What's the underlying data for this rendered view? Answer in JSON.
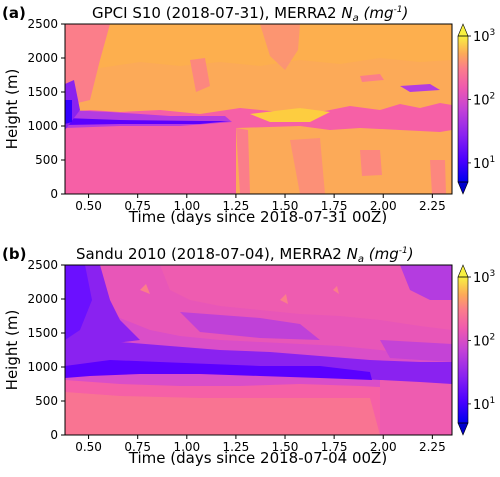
{
  "chart_data": [
    {
      "type": "heatmap",
      "panel": "(a)",
      "title_main": "GPCI S10 (2018-07-31), MERRA2 ",
      "title_var": "N",
      "title_sub": "a",
      "title_unit": "(mg",
      "title_exp": "-1",
      "title_close": ")",
      "xlabel": "Time (days since 2018-07-31 00Z)",
      "ylabel": "Height (m)",
      "xlim": [
        0.38,
        2.35
      ],
      "ylim": [
        0,
        2500
      ],
      "xticks": [
        "0.50",
        "0.75",
        "1.00",
        "1.25",
        "1.50",
        "1.75",
        "2.00",
        "2.25"
      ],
      "yticks": [
        "0",
        "500",
        "1000",
        "1500",
        "2000",
        "2500"
      ],
      "colorbar": {
        "scale": "log",
        "range": [
          5,
          1000
        ],
        "ticks": [
          "10",
          "10",
          "10"
        ],
        "exps": [
          "1",
          "2",
          "3"
        ]
      },
      "grid": false,
      "field_description": "Mostly ~100-300 mg-1 (pink) below ~1000 m; ~300-600 mg-1 (orange) above; thin low (~20-40) layer near 1000-1100 m from 0.38 to ~1.15 days."
    },
    {
      "type": "heatmap",
      "panel": "(b)",
      "title_main": "Sandu 2010 (2018-07-04), MERRA2 ",
      "title_var": "N",
      "title_sub": "a",
      "title_unit": "(mg",
      "title_exp": "-1",
      "title_close": ")",
      "xlabel": "Time (days since 2018-07-04 00Z)",
      "ylabel": "Height (m)",
      "xlim": [
        0.38,
        2.35
      ],
      "ylim": [
        0,
        2500
      ],
      "xticks": [
        "0.50",
        "0.75",
        "1.00",
        "1.25",
        "1.50",
        "1.75",
        "2.00",
        "2.25"
      ],
      "yticks": [
        "0",
        "500",
        "1000",
        "1500",
        "2000",
        "2500"
      ],
      "colorbar": {
        "scale": "log",
        "range": [
          5,
          1000
        ],
        "ticks": [
          "10",
          "10",
          "10"
        ],
        "exps": [
          "1",
          "2",
          "3"
        ]
      },
      "grid": false,
      "field_description": "Mostly ~100-150 mg-1 (pink) below ~650 m; low (~30-60, purple) layer ~700-1000 m; ~60-120 above, purple at upper left."
    }
  ],
  "colors": {
    "very_low": "#0000ee",
    "low": "#5a00ff",
    "purple": "#8a22f0",
    "violet": "#b43ce0",
    "magenta": "#da4ec8",
    "pink": "#f660a6",
    "salmon": "#fb7e8a",
    "orange": "#fcaa58",
    "gold": "#fdcd40",
    "yellow": "#f8f140"
  }
}
